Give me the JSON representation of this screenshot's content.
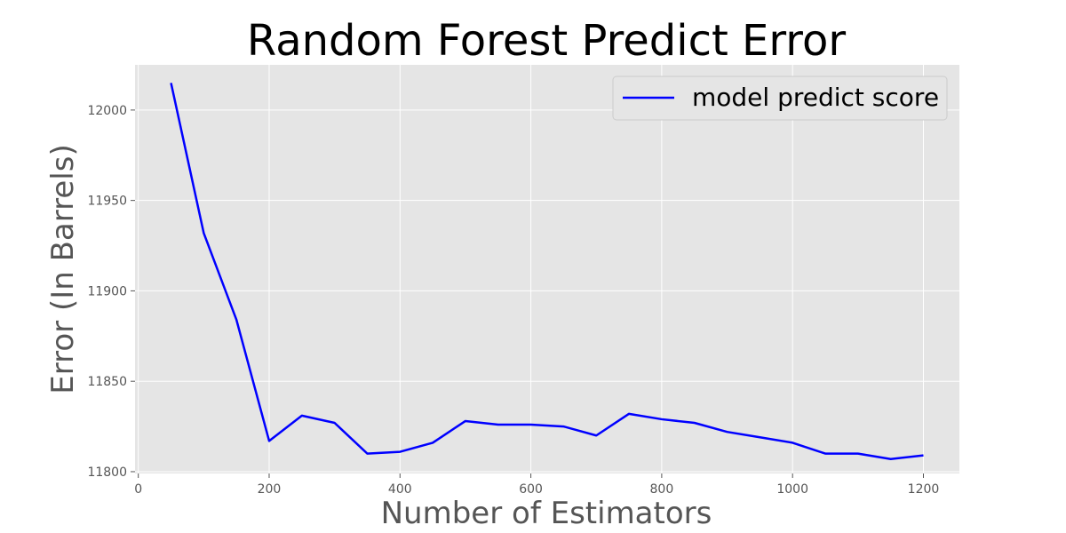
{
  "chart_data": {
    "type": "line",
    "title": "Random Forest Predict Error",
    "xlabel": "Number of Estimators",
    "ylabel": "Error (In Barrels)",
    "xlim": [
      -5,
      1255
    ],
    "ylim": [
      11799,
      12025
    ],
    "xticks": [
      0,
      200,
      400,
      600,
      800,
      1000,
      1200
    ],
    "yticks": [
      11800,
      11850,
      11900,
      11950,
      12000
    ],
    "grid": true,
    "legend_position": "top-right",
    "background_color": "#e5e5e5",
    "grid_color": "#ffffff",
    "series": [
      {
        "name": "model predict score",
        "color": "#0000ff",
        "x": [
          50,
          100,
          150,
          200,
          250,
          300,
          350,
          400,
          450,
          500,
          550,
          600,
          650,
          700,
          750,
          800,
          850,
          900,
          950,
          1000,
          1050,
          1100,
          1150,
          1200
        ],
        "values": [
          12015,
          11932,
          11884,
          11817,
          11831,
          11827,
          11810,
          11811,
          11816,
          11828,
          11826,
          11826,
          11825,
          11820,
          11832,
          11829,
          11827,
          11822,
          11819,
          11816,
          11810,
          11810,
          11807,
          11809
        ]
      }
    ]
  }
}
